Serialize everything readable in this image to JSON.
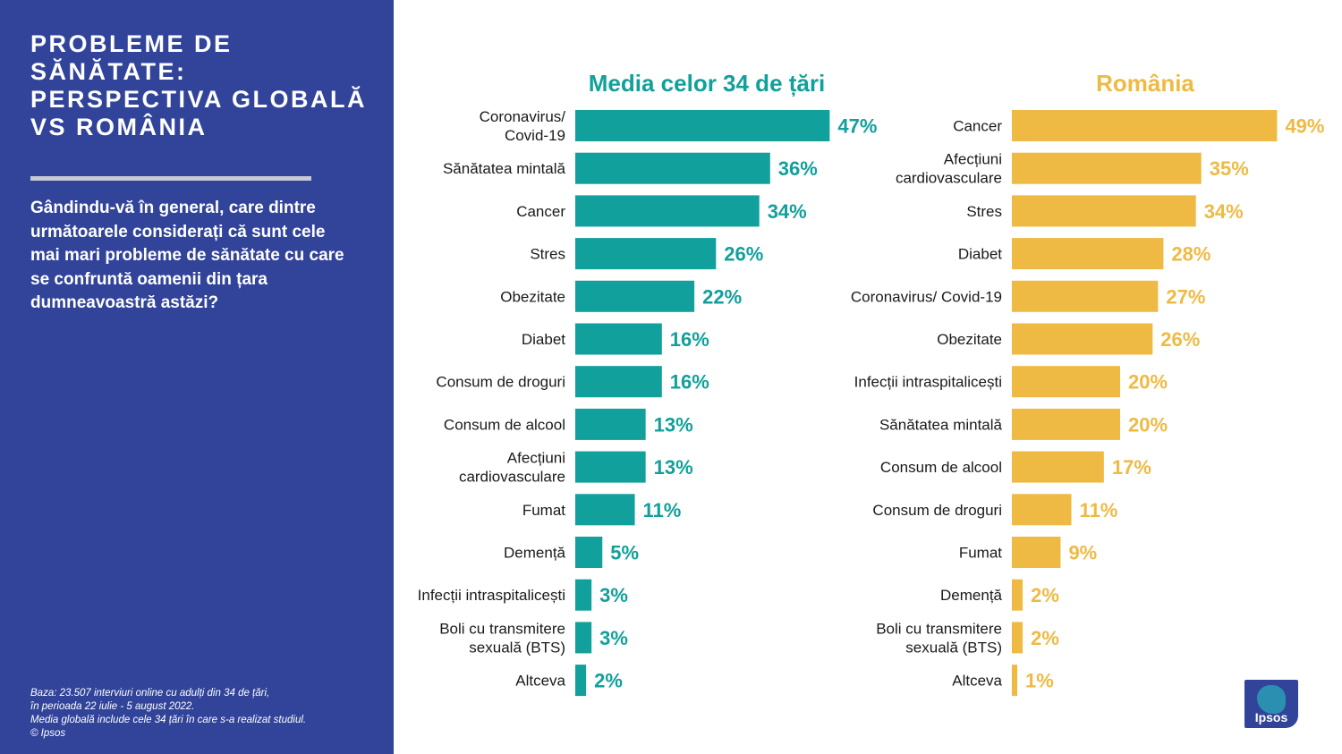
{
  "slide": {
    "title": "PROBLEME DE SĂNĂTATE: PERSPECTIVA GLOBALĂ VS ROMÂNIA",
    "question": "Gândindu-vă în general, care dintre următoarele considerați că sunt cele mai mari probleme de sănătate cu care se confruntă oamenii din țara dumneavoastră astăzi?",
    "footnote": [
      "Baza: 23.507 interviuri online cu adulți din 34 de țări,",
      "în perioada 22 iulie - 5 august 2022.",
      "Media globală include cele 34 țări în care s-a realizat studiul.",
      "© Ipsos"
    ],
    "logo_text": "Ipsos"
  },
  "colors": {
    "panel": "#31449a",
    "global": "#11a09b",
    "romania": "#efba43"
  },
  "chart_data": [
    {
      "type": "bar",
      "orientation": "horizontal",
      "title": "Media celor 34 de țări",
      "unit": "%",
      "xlim": [
        0,
        50
      ],
      "categories": [
        [
          "Coronavirus/",
          "Covid-19"
        ],
        [
          "Sănătatea mintală"
        ],
        [
          "Cancer"
        ],
        [
          "Stres"
        ],
        [
          "Obezitate"
        ],
        [
          "Diabet"
        ],
        [
          "Consum de droguri"
        ],
        [
          "Consum de alcool"
        ],
        [
          "Afecțiuni",
          "cardiovasculare"
        ],
        [
          "Fumat"
        ],
        [
          "Demență"
        ],
        [
          "Infecții intraspitalicești"
        ],
        [
          "Boli cu transmitere",
          "sexuală (BTS)"
        ],
        [
          "Altceva"
        ]
      ],
      "values": [
        47,
        36,
        34,
        26,
        22,
        16,
        16,
        13,
        13,
        11,
        5,
        3,
        3,
        2
      ],
      "labels": [
        "47%",
        "36%",
        "34%",
        "26%",
        "22%",
        "16%",
        "16%",
        "13%",
        "13%",
        "11%",
        "5%",
        "3%",
        "3%",
        "2%"
      ]
    },
    {
      "type": "bar",
      "orientation": "horizontal",
      "title": "România",
      "unit": "%",
      "xlim": [
        0,
        50
      ],
      "categories": [
        [
          "Cancer"
        ],
        [
          "Afecțiuni",
          "cardiovasculare"
        ],
        [
          "Stres"
        ],
        [
          "Diabet"
        ],
        [
          "Coronavirus/ Covid-19"
        ],
        [
          "Obezitate"
        ],
        [
          "Infecții intraspitalicești"
        ],
        [
          "Sănătatea mintală"
        ],
        [
          "Consum de alcool"
        ],
        [
          "Consum de droguri"
        ],
        [
          "Fumat"
        ],
        [
          "Demență"
        ],
        [
          "Boli cu transmitere",
          "sexuală (BTS)"
        ],
        [
          "Altceva"
        ]
      ],
      "values": [
        49,
        35,
        34,
        28,
        27,
        26,
        20,
        20,
        17,
        11,
        9,
        2,
        2,
        1
      ],
      "labels": [
        "49%",
        "35%",
        "34%",
        "28%",
        "27%",
        "26%",
        "20%",
        "20%",
        "17%",
        "11%",
        "9%",
        "2%",
        "2%",
        "1%"
      ]
    }
  ]
}
